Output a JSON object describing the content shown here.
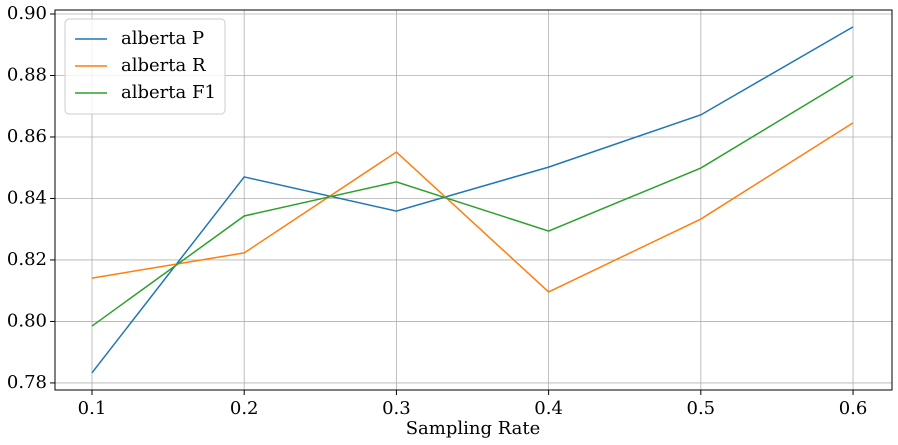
{
  "chart_data": {
    "type": "line",
    "xlabel": "Sampling Rate",
    "x": [
      0.1,
      0.2,
      0.3,
      0.4,
      0.5,
      0.6
    ],
    "series": [
      {
        "name": "alberta P",
        "color": "#1f77b4",
        "values": [
          0.7833,
          0.847,
          0.8359,
          0.8502,
          0.8672,
          0.8958
        ]
      },
      {
        "name": "alberta R",
        "color": "#ff7f0e",
        "values": [
          0.8141,
          0.8223,
          0.8551,
          0.8096,
          0.8333,
          0.8646
        ]
      },
      {
        "name": "alberta F1",
        "color": "#2ca02c",
        "values": [
          0.7985,
          0.8343,
          0.8454,
          0.8294,
          0.8499,
          0.8798
        ]
      }
    ],
    "xlim": [
      0.0757,
      0.6256
    ],
    "ylim": [
      0.7777,
      0.9013
    ],
    "xticks": [
      0.1,
      0.2,
      0.3,
      0.4,
      0.5,
      0.6
    ],
    "yticks": [
      0.78,
      {
        "value": 0.8,
        "label": "0.80"
      },
      0.82,
      0.84,
      0.86,
      0.88,
      {
        "value": 0.9,
        "label": "0.90"
      }
    ],
    "grid": true,
    "legend": "upper-left"
  }
}
